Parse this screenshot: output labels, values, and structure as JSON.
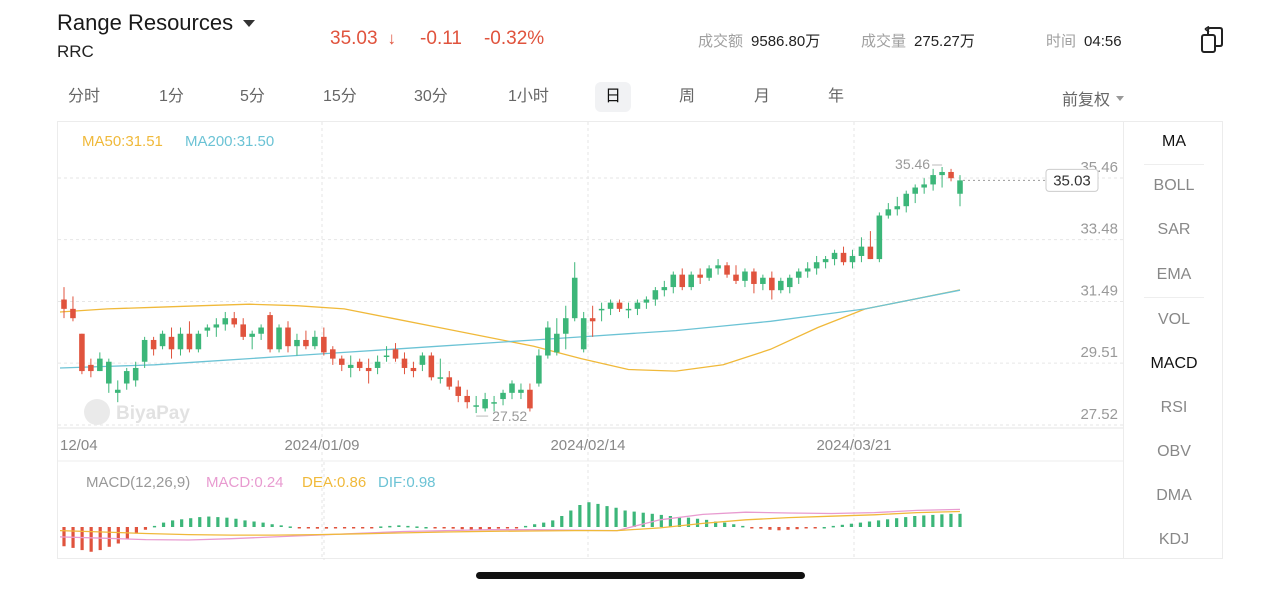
{
  "header": {
    "company_name": "Range Resources",
    "ticker": "RRC",
    "price": "35.03",
    "price_arrow": "↓",
    "change": "-0.11",
    "change_pct": "-0.32%",
    "turnover_label": "成交额",
    "turnover_value": "9586.80万",
    "volume_label": "成交量",
    "volume_value": "275.27万",
    "time_label": "时间",
    "time_value": "04:56"
  },
  "periods": [
    "分时",
    "1分",
    "5分",
    "15分",
    "30分",
    "1小时",
    "日",
    "周",
    "月",
    "年"
  ],
  "active_period": "日",
  "adjust_label": "前复权",
  "indicators": [
    "MA",
    "BOLL",
    "SAR",
    "EMA",
    "VOL",
    "MACD",
    "RSI",
    "OBV",
    "DMA",
    "KDJ"
  ],
  "active_indicators": [
    "MA",
    "MACD"
  ],
  "ma_legend": {
    "ma50": "MA50:31.51",
    "ma200": "MA200:31.50"
  },
  "price_axis": [
    "35.46",
    "33.48",
    "31.49",
    "29.51",
    "27.52"
  ],
  "current_price_tag": "35.03",
  "high_label": "35.46",
  "low_label": "27.52",
  "date_axis": [
    "12/04",
    "2024/01/09",
    "2024/02/14",
    "2024/03/21"
  ],
  "watermark": "BiyaPay",
  "macd_legend": {
    "title": "MACD(12,26,9)",
    "macd": "MACD:0.24",
    "dea": "DEA:0.86",
    "dif": "DIF:0.98"
  },
  "colors": {
    "up": "#3cb679",
    "down": "#e0533d",
    "ma50": "#f0b93a",
    "ma200": "#6cc3d5",
    "dif": "#e89bd0",
    "dea": "#f0b93a"
  },
  "chart_data": {
    "type": "candlestick",
    "y_ticks": [
      27.52,
      29.51,
      31.49,
      33.48,
      35.46
    ],
    "candles": [
      [
        31.2,
        31.6,
        30.6,
        30.9
      ],
      [
        30.9,
        31.3,
        30.5,
        30.6
      ],
      [
        30.1,
        30.1,
        28.8,
        28.9
      ],
      [
        29.1,
        29.3,
        28.7,
        28.9
      ],
      [
        28.9,
        29.5,
        28.9,
        29.3
      ],
      [
        28.5,
        29.3,
        28.2,
        29.2
      ],
      [
        28.2,
        28.6,
        27.9,
        28.3
      ],
      [
        28.5,
        29.0,
        28.3,
        28.9
      ],
      [
        28.6,
        29.2,
        28.4,
        29.0
      ],
      [
        29.2,
        30.0,
        29.0,
        29.9
      ],
      [
        29.9,
        30.0,
        29.4,
        29.6
      ],
      [
        29.7,
        30.2,
        29.6,
        30.1
      ],
      [
        30.0,
        30.3,
        29.3,
        29.6
      ],
      [
        29.6,
        30.3,
        29.4,
        30.1
      ],
      [
        30.1,
        30.5,
        29.5,
        29.6
      ],
      [
        29.6,
        30.2,
        29.5,
        30.1
      ],
      [
        30.2,
        30.4,
        30.0,
        30.3
      ],
      [
        30.3,
        30.6,
        30.0,
        30.4
      ],
      [
        30.4,
        30.8,
        30.2,
        30.6
      ],
      [
        30.6,
        30.8,
        30.3,
        30.4
      ],
      [
        30.4,
        30.6,
        29.9,
        30.0
      ],
      [
        30.0,
        30.2,
        29.6,
        30.1
      ],
      [
        30.1,
        30.4,
        29.9,
        30.3
      ],
      [
        30.7,
        30.8,
        29.5,
        29.6
      ],
      [
        29.6,
        30.4,
        29.5,
        30.3
      ],
      [
        30.3,
        30.5,
        29.5,
        29.7
      ],
      [
        29.7,
        30.1,
        29.4,
        29.9
      ],
      [
        29.9,
        30.2,
        29.6,
        29.7
      ],
      [
        29.7,
        30.2,
        29.6,
        30.0
      ],
      [
        30.0,
        30.3,
        29.4,
        29.5
      ],
      [
        29.6,
        29.7,
        29.1,
        29.3
      ],
      [
        29.3,
        29.4,
        28.9,
        29.1
      ],
      [
        29.0,
        29.4,
        28.7,
        29.1
      ],
      [
        29.2,
        29.3,
        28.9,
        29.0
      ],
      [
        29.0,
        29.3,
        28.5,
        28.9
      ],
      [
        29.0,
        29.4,
        28.8,
        29.2
      ],
      [
        29.4,
        29.7,
        29.2,
        29.4
      ],
      [
        29.6,
        29.8,
        29.2,
        29.3
      ],
      [
        29.3,
        29.5,
        28.8,
        29.0
      ],
      [
        29.0,
        29.2,
        28.7,
        28.9
      ],
      [
        29.1,
        29.5,
        28.9,
        29.4
      ],
      [
        29.4,
        29.5,
        28.6,
        28.7
      ],
      [
        28.7,
        29.3,
        28.5,
        28.7
      ],
      [
        28.7,
        28.9,
        28.3,
        28.4
      ],
      [
        28.4,
        28.6,
        27.9,
        28.1
      ],
      [
        28.1,
        28.3,
        27.7,
        27.9
      ],
      [
        27.8,
        28.1,
        27.55,
        27.8
      ],
      [
        27.7,
        28.2,
        27.6,
        28.0
      ],
      [
        27.9,
        28.1,
        27.6,
        27.9
      ],
      [
        28.0,
        28.3,
        27.8,
        28.2
      ],
      [
        28.2,
        28.6,
        28.0,
        28.5
      ],
      [
        28.2,
        28.5,
        28.0,
        28.3
      ],
      [
        28.3,
        28.5,
        27.6,
        27.7
      ],
      [
        28.5,
        29.6,
        28.4,
        29.4
      ],
      [
        29.4,
        30.5,
        29.3,
        30.3
      ],
      [
        29.5,
        30.6,
        29.4,
        30.1
      ],
      [
        30.1,
        31.0,
        29.6,
        30.6
      ],
      [
        30.6,
        32.4,
        30.5,
        31.9
      ],
      [
        29.6,
        30.8,
        29.5,
        30.6
      ],
      [
        30.6,
        31.0,
        30.0,
        30.5
      ],
      [
        30.9,
        31.1,
        30.5,
        30.9
      ],
      [
        30.9,
        31.2,
        30.7,
        31.1
      ],
      [
        31.1,
        31.2,
        30.8,
        30.9
      ],
      [
        30.9,
        31.1,
        30.6,
        30.9
      ],
      [
        30.9,
        31.2,
        30.7,
        31.1
      ],
      [
        31.1,
        31.3,
        30.9,
        31.2
      ],
      [
        31.2,
        31.6,
        31.0,
        31.5
      ],
      [
        31.5,
        31.8,
        31.3,
        31.6
      ],
      [
        31.6,
        32.1,
        31.4,
        32.0
      ],
      [
        32.0,
        32.2,
        31.5,
        31.6
      ],
      [
        31.6,
        32.1,
        31.5,
        32.0
      ],
      [
        32.0,
        32.2,
        31.7,
        31.9
      ],
      [
        31.9,
        32.3,
        31.8,
        32.2
      ],
      [
        32.2,
        32.5,
        32.0,
        32.3
      ],
      [
        32.3,
        32.4,
        31.9,
        32.0
      ],
      [
        32.0,
        32.3,
        31.7,
        31.8
      ],
      [
        31.8,
        32.2,
        31.6,
        32.1
      ],
      [
        32.1,
        32.2,
        31.4,
        31.7
      ],
      [
        31.7,
        32.0,
        31.5,
        31.9
      ],
      [
        31.9,
        32.1,
        31.2,
        31.5
      ],
      [
        31.5,
        31.9,
        31.4,
        31.8
      ],
      [
        31.6,
        32.0,
        31.4,
        31.9
      ],
      [
        31.9,
        32.2,
        31.7,
        32.1
      ],
      [
        32.1,
        32.4,
        31.9,
        32.2
      ],
      [
        32.2,
        32.6,
        32.0,
        32.4
      ],
      [
        32.4,
        32.6,
        32.2,
        32.5
      ],
      [
        32.5,
        32.8,
        32.3,
        32.7
      ],
      [
        32.7,
        32.9,
        32.3,
        32.4
      ],
      [
        32.4,
        32.8,
        32.2,
        32.6
      ],
      [
        32.6,
        33.2,
        32.4,
        32.9
      ],
      [
        32.9,
        33.4,
        32.5,
        32.5
      ],
      [
        32.5,
        34.0,
        32.4,
        33.9
      ],
      [
        33.9,
        34.3,
        33.8,
        34.1
      ],
      [
        34.1,
        34.5,
        33.9,
        34.2
      ],
      [
        34.2,
        34.7,
        34.0,
        34.6
      ],
      [
        34.6,
        34.9,
        34.3,
        34.8
      ],
      [
        34.8,
        35.1,
        34.6,
        34.9
      ],
      [
        34.9,
        35.4,
        34.7,
        35.2
      ],
      [
        35.2,
        35.46,
        34.8,
        35.3
      ],
      [
        35.3,
        35.4,
        35.0,
        35.1
      ],
      [
        34.6,
        35.2,
        34.2,
        35.03
      ]
    ],
    "ma50": [
      30.8,
      30.9,
      30.95,
      31.0,
      31.05,
      31.0,
      30.9,
      30.6,
      30.3,
      30.0,
      29.7,
      29.3,
      28.95,
      28.9,
      29.1,
      29.6,
      30.3,
      30.9,
      31.2,
      31.51
    ],
    "ma200": [
      29.0,
      29.05,
      29.1,
      29.2,
      29.3,
      29.4,
      29.5,
      29.6,
      29.7,
      29.8,
      29.9,
      30.0,
      30.1,
      30.2,
      30.35,
      30.5,
      30.7,
      30.9,
      31.2,
      31.5
    ],
    "macd_hist": [
      -0.35,
      -0.38,
      -0.42,
      -0.45,
      -0.42,
      -0.36,
      -0.3,
      -0.22,
      -0.12,
      -0.05,
      0.02,
      0.08,
      0.12,
      0.14,
      0.16,
      0.18,
      0.19,
      0.18,
      0.17,
      0.15,
      0.12,
      0.1,
      0.08,
      0.05,
      0.03,
      0.01,
      -0.01,
      -0.02,
      -0.03,
      -0.03,
      -0.02,
      -0.02,
      -0.01,
      -0.01,
      -0.01,
      0.01,
      0.02,
      0.03,
      0.02,
      0.01,
      0.0,
      -0.01,
      -0.02,
      -0.03,
      -0.04,
      -0.05,
      -0.05,
      -0.04,
      -0.03,
      -0.02,
      -0.01,
      0.02,
      0.05,
      0.08,
      0.12,
      0.2,
      0.3,
      0.4,
      0.45,
      0.42,
      0.38,
      0.35,
      0.3,
      0.28,
      0.26,
      0.24,
      0.22,
      0.2,
      0.18,
      0.17,
      0.15,
      0.13,
      0.1,
      0.08,
      0.05,
      0.02,
      -0.01,
      -0.03,
      -0.05,
      -0.06,
      -0.05,
      -0.04,
      -0.02,
      -0.01,
      0.0,
      0.02,
      0.04,
      0.06,
      0.08,
      0.1,
      0.12,
      0.14,
      0.16,
      0.18,
      0.2,
      0.21,
      0.22,
      0.23,
      0.24,
      0.24
    ],
    "dif": [
      -0.55,
      -0.62,
      -0.7,
      -0.72,
      -0.65,
      -0.55,
      -0.45,
      -0.35,
      -0.25,
      -0.2,
      -0.15,
      -0.15,
      -0.18,
      -0.2,
      0.4,
      0.7,
      0.82,
      0.78,
      0.75,
      0.8,
      0.92,
      0.98
    ],
    "dea": [
      -0.2,
      -0.28,
      -0.36,
      -0.42,
      -0.45,
      -0.45,
      -0.42,
      -0.38,
      -0.33,
      -0.28,
      -0.24,
      -0.22,
      -0.2,
      -0.2,
      -0.05,
      0.2,
      0.4,
      0.52,
      0.6,
      0.68,
      0.8,
      0.86
    ]
  }
}
